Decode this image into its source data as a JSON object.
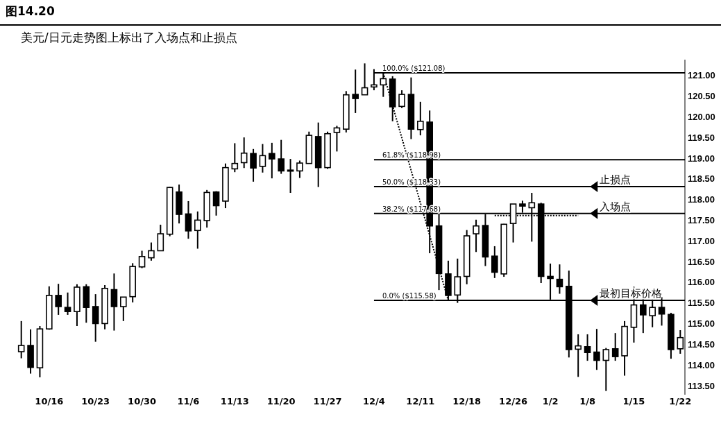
{
  "chart_data": {
    "type": "candlestick",
    "title": "图14.20",
    "subtitle": "美元/日元走势图上标出了入场点和止损点",
    "categories": [
      null,
      null,
      null,
      "10/16",
      null,
      null,
      null,
      null,
      "10/23",
      null,
      null,
      null,
      null,
      "10/30",
      null,
      null,
      null,
      null,
      "11/6",
      null,
      null,
      null,
      null,
      "11/13",
      null,
      null,
      null,
      null,
      "11/20",
      null,
      null,
      null,
      null,
      "11/27",
      null,
      null,
      null,
      null,
      "12/4",
      null,
      null,
      null,
      null,
      "12/11",
      null,
      null,
      null,
      null,
      "12/18",
      null,
      null,
      null,
      null,
      "12/26",
      null,
      null,
      null,
      "1/2",
      null,
      null,
      null,
      "1/8",
      null,
      null,
      null,
      null,
      "1/15",
      null,
      null,
      null,
      null,
      "1/22"
    ],
    "ohlc": [
      [
        114.34,
        115.08,
        114.18,
        114.49
      ],
      [
        114.49,
        114.88,
        113.81,
        113.96
      ],
      [
        113.95,
        114.96,
        113.72,
        114.89
      ],
      [
        114.89,
        115.92,
        114.87,
        115.7
      ],
      [
        115.7,
        115.98,
        115.23,
        115.43
      ],
      [
        115.41,
        115.77,
        115.23,
        115.31
      ],
      [
        115.31,
        115.97,
        114.96,
        115.9
      ],
      [
        115.91,
        115.97,
        115.04,
        115.41
      ],
      [
        115.43,
        115.73,
        114.58,
        115.02
      ],
      [
        115.02,
        115.95,
        114.88,
        115.87
      ],
      [
        115.84,
        116.23,
        114.85,
        115.43
      ],
      [
        115.43,
        115.66,
        115.08,
        115.66
      ],
      [
        115.67,
        116.48,
        115.53,
        116.4
      ],
      [
        116.39,
        116.78,
        116.36,
        116.64
      ],
      [
        116.61,
        116.98,
        116.54,
        116.78
      ],
      [
        116.78,
        117.41,
        116.78,
        117.19
      ],
      [
        117.18,
        118.32,
        117.13,
        118.31
      ],
      [
        118.2,
        118.38,
        117.44,
        117.66
      ],
      [
        117.67,
        117.98,
        117.07,
        117.26
      ],
      [
        117.27,
        117.73,
        116.83,
        117.52
      ],
      [
        117.51,
        118.25,
        117.34,
        118.19
      ],
      [
        118.2,
        118.22,
        117.63,
        117.87
      ],
      [
        117.98,
        118.89,
        117.81,
        118.79
      ],
      [
        118.76,
        119.38,
        118.68,
        118.89
      ],
      [
        118.91,
        119.52,
        118.78,
        119.14
      ],
      [
        119.13,
        119.24,
        118.45,
        118.78
      ],
      [
        118.82,
        119.36,
        118.67,
        119.08
      ],
      [
        119.13,
        119.39,
        118.53,
        119.0
      ],
      [
        119.0,
        119.46,
        118.64,
        118.71
      ],
      [
        118.73,
        119.0,
        118.18,
        118.73
      ],
      [
        118.71,
        118.96,
        118.54,
        118.9
      ],
      [
        118.89,
        119.66,
        118.89,
        119.57
      ],
      [
        119.54,
        119.88,
        118.32,
        118.79
      ],
      [
        118.79,
        119.66,
        118.76,
        119.61
      ],
      [
        119.64,
        119.8,
        119.18,
        119.75
      ],
      [
        119.72,
        120.64,
        119.64,
        120.55
      ],
      [
        120.56,
        121.16,
        120.11,
        120.46
      ],
      [
        120.55,
        121.31,
        120.55,
        120.72
      ],
      [
        120.74,
        121.17,
        120.66,
        120.79
      ],
      [
        120.79,
        121.08,
        120.5,
        120.94
      ],
      [
        120.93,
        121.0,
        119.91,
        120.26
      ],
      [
        120.27,
        120.66,
        120.23,
        120.56
      ],
      [
        120.56,
        120.97,
        119.48,
        119.72
      ],
      [
        119.71,
        120.38,
        119.57,
        119.91
      ],
      [
        119.89,
        120.17,
        116.72,
        117.38
      ],
      [
        117.38,
        117.66,
        115.83,
        116.23
      ],
      [
        116.22,
        116.54,
        115.58,
        115.7
      ],
      [
        115.71,
        116.59,
        115.52,
        116.15
      ],
      [
        116.16,
        117.28,
        115.97,
        117.14
      ],
      [
        117.19,
        117.53,
        116.75,
        117.38
      ],
      [
        117.39,
        117.66,
        116.41,
        116.63
      ],
      [
        116.65,
        116.89,
        116.12,
        116.26
      ],
      [
        116.22,
        117.43,
        116.15,
        117.42
      ],
      [
        117.44,
        117.91,
        116.98,
        117.91
      ],
      [
        117.91,
        117.99,
        117.7,
        117.86
      ],
      [
        117.82,
        118.18,
        117.0,
        117.94
      ],
      [
        117.91,
        117.94,
        116.0,
        116.16
      ],
      [
        116.16,
        116.47,
        115.6,
        116.11
      ],
      [
        116.09,
        116.45,
        115.74,
        115.91
      ],
      [
        115.92,
        116.3,
        114.2,
        114.39
      ],
      [
        114.4,
        114.76,
        113.73,
        114.48
      ],
      [
        114.46,
        114.76,
        114.12,
        114.32
      ],
      [
        114.33,
        114.89,
        113.9,
        114.13
      ],
      [
        114.13,
        114.43,
        113.39,
        114.39
      ],
      [
        114.41,
        114.79,
        114.12,
        114.22
      ],
      [
        114.24,
        115.08,
        113.76,
        114.95
      ],
      [
        114.93,
        115.91,
        114.56,
        115.47
      ],
      [
        115.47,
        115.85,
        114.79,
        115.23
      ],
      [
        115.21,
        115.6,
        114.93,
        115.41
      ],
      [
        115.41,
        115.66,
        114.97,
        115.25
      ],
      [
        115.24,
        115.28,
        114.17,
        114.39
      ],
      [
        114.41,
        114.86,
        114.29,
        114.68
      ]
    ],
    "series": [
      {
        "type": "line",
        "line_style": "dotted",
        "color": "#000000",
        "values": [
          null,
          null,
          null,
          null,
          null,
          null,
          null,
          null,
          null,
          null,
          null,
          null,
          null,
          null,
          null,
          null,
          null,
          null,
          null,
          null,
          null,
          null,
          null,
          null,
          null,
          null,
          null,
          null,
          null,
          null,
          null,
          null,
          null,
          null,
          null,
          null,
          null,
          null,
          null,
          121.08,
          null,
          null,
          null,
          null,
          null,
          null,
          115.58,
          null,
          null,
          null,
          null,
          null,
          null,
          null,
          null,
          null,
          null,
          null,
          null,
          null,
          null,
          null,
          null,
          null,
          null,
          null,
          null,
          null,
          null,
          null,
          null,
          null
        ]
      },
      {
        "type": "line",
        "line_style": "dotted",
        "color": "#000000",
        "values": [
          null,
          null,
          null,
          null,
          null,
          null,
          null,
          null,
          null,
          null,
          null,
          null,
          null,
          null,
          null,
          null,
          null,
          null,
          null,
          null,
          null,
          null,
          null,
          null,
          null,
          null,
          null,
          null,
          null,
          null,
          null,
          null,
          null,
          null,
          null,
          null,
          null,
          null,
          null,
          null,
          null,
          null,
          null,
          null,
          null,
          null,
          null,
          null,
          null,
          null,
          null,
          117.63,
          null,
          null,
          null,
          null,
          null,
          null,
          null,
          null,
          117.63,
          null,
          null,
          null,
          null,
          null,
          null,
          null,
          null,
          null,
          null,
          null
        ]
      }
    ],
    "ylim": [
      113.3,
      121.4
    ],
    "yticks": [
      {
        "value": 113.5,
        "label": "113.50"
      },
      {
        "value": 114,
        "label": "114.00"
      },
      {
        "value": 114.5,
        "label": "114.50"
      },
      {
        "value": 115,
        "label": "115.00"
      },
      {
        "value": 115.5,
        "label": "115.50"
      },
      {
        "value": 116,
        "label": "116.00"
      },
      {
        "value": 116.5,
        "label": "116.50"
      },
      {
        "value": 117,
        "label": "117.00"
      },
      {
        "value": 117.5,
        "label": "117.50"
      },
      {
        "value": 118,
        "label": "118.00"
      },
      {
        "value": 118.5,
        "label": "118.50"
      },
      {
        "value": 119,
        "label": "119.00"
      },
      {
        "value": 119.5,
        "label": "119.50"
      },
      {
        "value": 120,
        "label": "120.00"
      },
      {
        "value": 120.5,
        "label": "120.50"
      },
      {
        "value": 121,
        "label": "121.00"
      }
    ],
    "ref_lines": [
      {
        "axis": "y",
        "value": 121.08,
        "color": "#000000"
      },
      {
        "axis": "y",
        "value": 118.98,
        "color": "#000000"
      },
      {
        "axis": "y",
        "value": 118.33,
        "label": "止损点",
        "color": "#000000"
      },
      {
        "axis": "y",
        "value": 117.68,
        "label": "入场点",
        "color": "#000000"
      },
      {
        "axis": "y",
        "value": 115.58,
        "label": "最初目标价格",
        "color": "#000000"
      }
    ],
    "annotations": [
      {
        "text": "100.0% ($121.08)",
        "x": "12/4",
        "y": 121.08
      },
      {
        "text": "61.8% ($118.98)",
        "x": "12/4",
        "y": 118.98
      },
      {
        "text": "50.0% ($118.33)",
        "x": "12/4",
        "y": 118.33
      },
      {
        "text": "38.2% ($117.68)",
        "x": "12/4",
        "y": 117.68
      },
      {
        "text": "0.0% ($115.58)",
        "x": "12/4",
        "y": 115.58
      }
    ],
    "grid": false
  }
}
